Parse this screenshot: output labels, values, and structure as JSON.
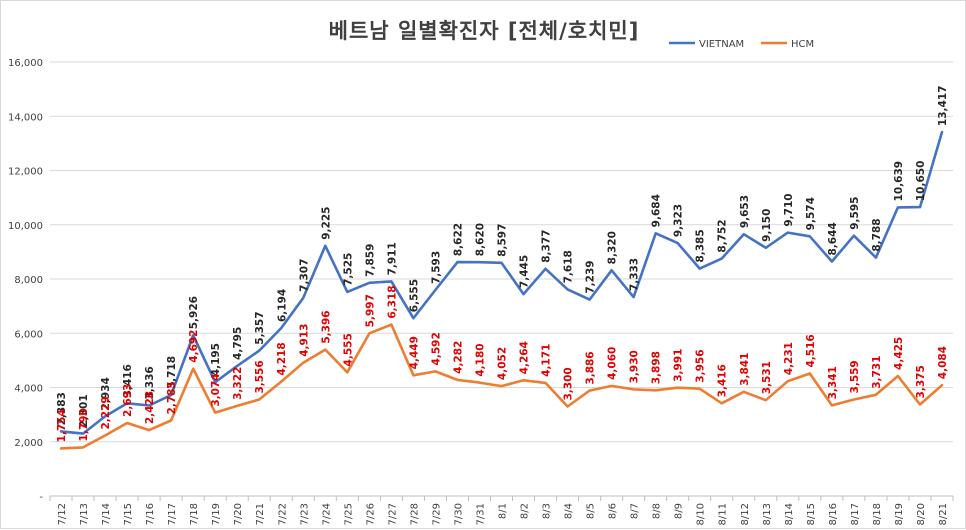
{
  "chart_data": {
    "type": "line",
    "title": "베트남  일별확진자 [전체/호치민]",
    "xlabel": "",
    "ylabel": "",
    "ylim": [
      0,
      16000
    ],
    "yticks": [
      "-",
      "2,000",
      "4,000",
      "6,000",
      "8,000",
      "10,000",
      "12,000",
      "14,000",
      "16,000"
    ],
    "grid": true,
    "legend_position": "top-right",
    "categories": [
      "7/12",
      "7/13",
      "7/14",
      "7/15",
      "7/16",
      "7/17",
      "7/18",
      "7/19",
      "7/20",
      "7/21",
      "7/22",
      "7/23",
      "7/24",
      "7/25",
      "7/26",
      "7/27",
      "7/28",
      "7/29",
      "7/30",
      "7/31",
      "8/1",
      "8/2",
      "8/3",
      "8/4",
      "8/5",
      "8/6",
      "8/7",
      "8/8",
      "8/9",
      "8/10",
      "8/11",
      "8/12",
      "8/13",
      "8/14",
      "8/15",
      "8/16",
      "8/17",
      "8/18",
      "8/19",
      "8/20",
      "8/21"
    ],
    "series": [
      {
        "name": "VIETNAM",
        "color": "#4472c4",
        "values": [
          2383,
          2301,
          2934,
          3416,
          3336,
          3718,
          5926,
          4195,
          4795,
          5357,
          6194,
          7307,
          9225,
          7525,
          7859,
          7911,
          6555,
          7593,
          8622,
          8620,
          8597,
          7445,
          8377,
          7618,
          7239,
          8320,
          7333,
          9684,
          9323,
          8385,
          8752,
          9653,
          9150,
          9710,
          9574,
          8644,
          9595,
          8788,
          10639,
          10650,
          13417
        ],
        "labels": [
          "2,383",
          "2,301",
          "2,934",
          "3,416",
          "3,336",
          "3,718",
          "5,926",
          "4,195",
          "4,795",
          "5,357",
          "6,194",
          "7,307",
          "9,225",
          "7,525",
          "7,859",
          "7,911",
          "6,555",
          "7,593",
          "8,622",
          "8,620",
          "8,597",
          "7,445",
          "8,377",
          "7,618",
          "7,239",
          "8,320",
          "7,333",
          "9,684",
          "9,323",
          "8,385",
          "8,752",
          "9,653",
          "9,150",
          "9,710",
          "9,574",
          "8,644",
          "9,595",
          "8,788",
          "10,639",
          "10,650",
          "13,417"
        ]
      },
      {
        "name": "HCM",
        "color": "#ed7d31",
        "values": [
          1754,
          1790,
          2229,
          2693,
          2428,
          2785,
          4692,
          3074,
          3322,
          3556,
          4218,
          4913,
          5396,
          4555,
          5997,
          6318,
          4449,
          4592,
          4282,
          4180,
          4052,
          4264,
          4171,
          3300,
          3886,
          4060,
          3930,
          3898,
          3991,
          3956,
          3416,
          3841,
          3531,
          4231,
          4516,
          3341,
          3559,
          3731,
          4425,
          3375,
          4084
        ],
        "labels": [
          "1,754",
          "1,790",
          "2,229",
          "2,693",
          "2,428",
          "2,785",
          "4,692",
          "3,074",
          "3,322",
          "3,556",
          "4,218",
          "4,913",
          "5,396",
          "4,555",
          "5,997",
          "6,318",
          "4,449",
          "4,592",
          "4,282",
          "4,180",
          "4,052",
          "4,264",
          "4,171",
          "3,300",
          "3,886",
          "4,060",
          "3,930",
          "3,898",
          "3,991",
          "3,956",
          "3,416",
          "3,841",
          "3,531",
          "4,231",
          "4,516",
          "3,341",
          "3,559",
          "3,731",
          "4,425",
          "3,375",
          "4,084"
        ]
      }
    ]
  }
}
